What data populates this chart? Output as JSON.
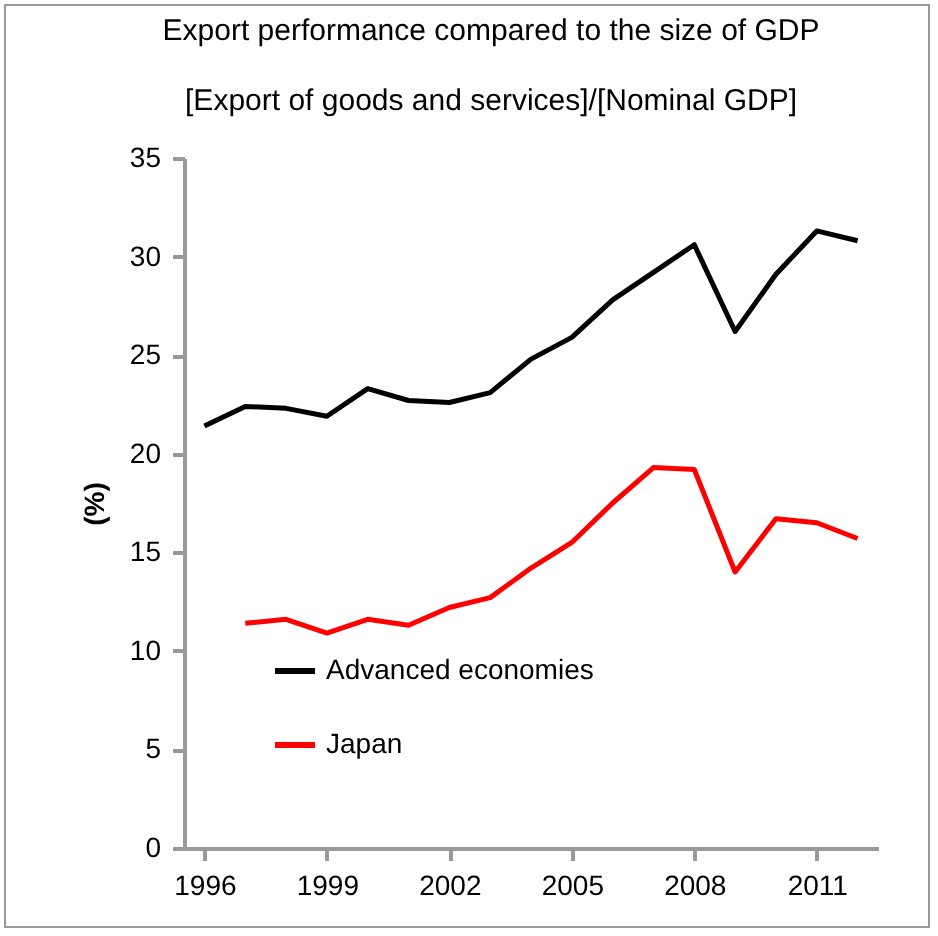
{
  "chart_data": {
    "type": "line",
    "title": "Export performance compared to the size of GDP",
    "subtitle": "[Export of goods and services]/[Nominal GDP]",
    "ylabel": "(%)",
    "x": [
      1996,
      1997,
      1998,
      1999,
      2000,
      2001,
      2002,
      2003,
      2004,
      2005,
      2006,
      2007,
      2008,
      2009,
      2010,
      2011,
      2012
    ],
    "xlim": [
      1995.5,
      2012.5
    ],
    "xticks": [
      1996,
      1999,
      2002,
      2005,
      2008,
      2011
    ],
    "ylim": [
      0,
      35
    ],
    "yticks": [
      0,
      5,
      10,
      15,
      20,
      25,
      30,
      35
    ],
    "series": [
      {
        "name": "Advanced economies",
        "color": "#000000",
        "values": [
          21.4,
          22.4,
          22.3,
          21.9,
          23.3,
          22.7,
          22.6,
          23.1,
          24.8,
          25.9,
          27.8,
          29.2,
          30.6,
          26.2,
          29.1,
          31.3,
          30.8
        ]
      },
      {
        "name": "Japan",
        "color": "#ff0000",
        "values": [
          null,
          11.4,
          11.6,
          10.9,
          11.6,
          11.3,
          12.2,
          12.7,
          14.2,
          15.5,
          17.5,
          19.3,
          19.2,
          14.0,
          16.7,
          16.5,
          15.7
        ]
      }
    ],
    "grid": false,
    "legend": "bottom left",
    "marker": "none",
    "line_style": "solid"
  }
}
